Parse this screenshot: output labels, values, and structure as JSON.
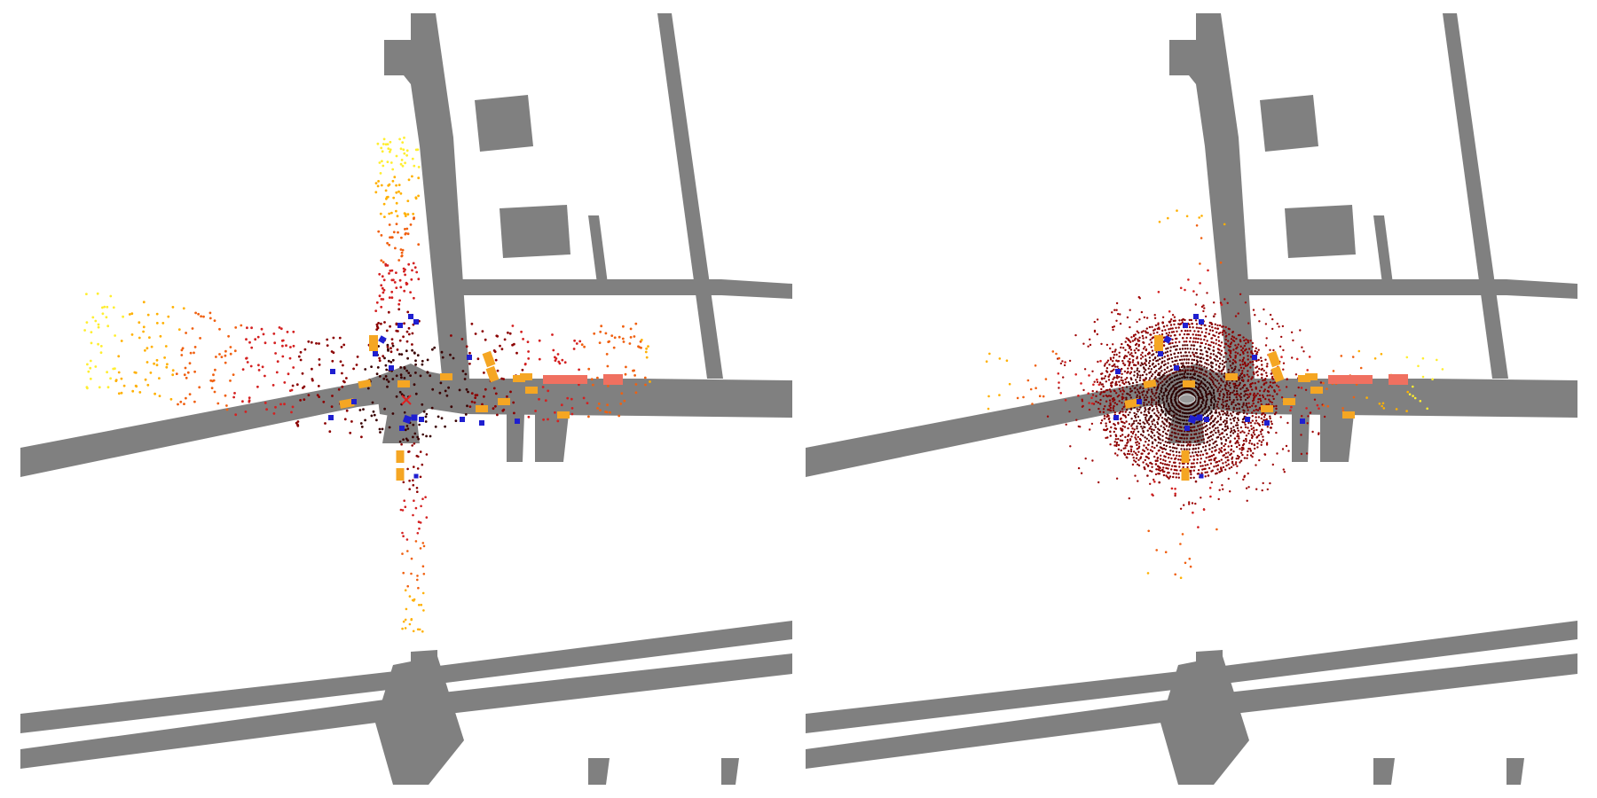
{
  "figure": {
    "panels": [
      {
        "id": "left",
        "caption": "",
        "road_color": "#808080",
        "background": "#ffffff",
        "points_style": "sparse-colored-points",
        "ego_marker": "x-red"
      },
      {
        "id": "right",
        "caption": "",
        "road_color": "#808080",
        "background": "#ffffff",
        "points_style": "dense-dark-red-sweep",
        "ego_marker": "car-gray"
      }
    ],
    "legend": {
      "car_color": "#f5a623",
      "pedestrian_color": "#1f1fd0",
      "truck_color": "#f07060",
      "point_palette": [
        "#3a0000",
        "#8b0000",
        "#d42020",
        "#f06010",
        "#ffb000",
        "#ffee30"
      ]
    }
  }
}
